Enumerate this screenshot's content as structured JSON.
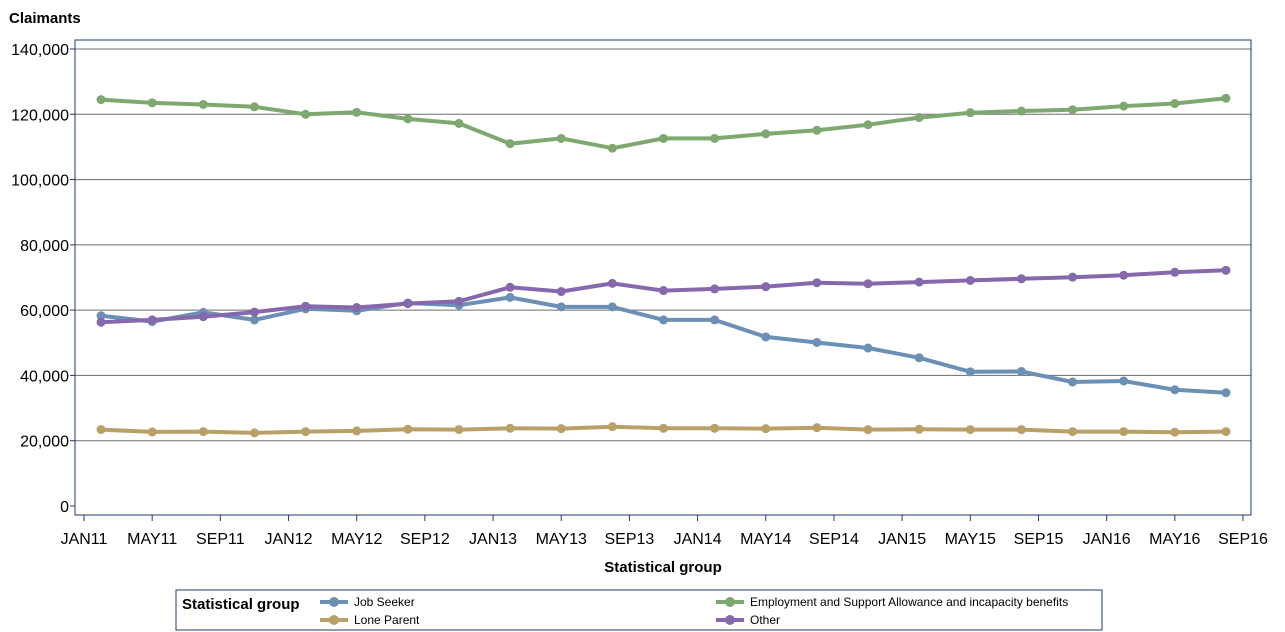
{
  "chart_data": {
    "type": "line",
    "ylabel": "Claimants",
    "xlabel": "Statistical group",
    "ylim": [
      0,
      140000
    ],
    "yticks": [
      0,
      20000,
      40000,
      60000,
      80000,
      100000,
      120000,
      140000
    ],
    "ytick_labels": [
      "0",
      "20,000",
      "40,000",
      "60,000",
      "80,000",
      "100,000",
      "120,000",
      "140,000"
    ],
    "xticks": [
      "JAN11",
      "MAY11",
      "SEP11",
      "JAN12",
      "MAY12",
      "SEP12",
      "JAN13",
      "MAY13",
      "SEP13",
      "JAN14",
      "MAY14",
      "SEP14",
      "JAN15",
      "MAY15",
      "SEP15",
      "JAN16",
      "MAY16",
      "SEP16"
    ],
    "x": [
      "FEB11",
      "MAY11",
      "AUG11",
      "NOV11",
      "FEB12",
      "MAY12",
      "AUG12",
      "NOV12",
      "FEB13",
      "MAY13",
      "AUG13",
      "NOV13",
      "FEB14",
      "MAY14",
      "AUG14",
      "NOV14",
      "FEB15",
      "MAY15",
      "AUG15",
      "NOV15",
      "FEB16",
      "MAY16",
      "AUG16"
    ],
    "grid": true,
    "legend_title": "Statistical group",
    "legend_position": "bottom",
    "series": [
      {
        "name": "Job Seeker",
        "color": "#6b8fb5",
        "values": [
          58300,
          56500,
          59300,
          57000,
          60400,
          59800,
          62200,
          61500,
          63900,
          61000,
          61000,
          57000,
          57000,
          51800,
          50100,
          48400,
          45400,
          41100,
          41200,
          38000,
          38300,
          35600,
          34700
        ]
      },
      {
        "name": "Employment and Support Allowance and incapacity benefits",
        "color": "#7fa870",
        "values": [
          124500,
          123500,
          123000,
          122300,
          120000,
          120600,
          118600,
          117200,
          111000,
          112600,
          109600,
          112600,
          112600,
          114000,
          115100,
          116800,
          119000,
          120500,
          121000,
          121400,
          122500,
          123300,
          124900
        ]
      },
      {
        "name": "Lone Parent",
        "color": "#b8a067",
        "values": [
          23400,
          22700,
          22800,
          22400,
          22800,
          23000,
          23500,
          23400,
          23800,
          23700,
          24300,
          23800,
          23800,
          23700,
          24000,
          23400,
          23500,
          23400,
          23400,
          22800,
          22800,
          22600,
          22800
        ]
      },
      {
        "name": "Other",
        "color": "#8668ad",
        "values": [
          56300,
          57000,
          58000,
          59400,
          61200,
          60800,
          62000,
          62700,
          67000,
          65700,
          68200,
          66000,
          66500,
          67200,
          68400,
          68100,
          68600,
          69100,
          69600,
          70100,
          70700,
          71600,
          72200
        ]
      }
    ]
  }
}
